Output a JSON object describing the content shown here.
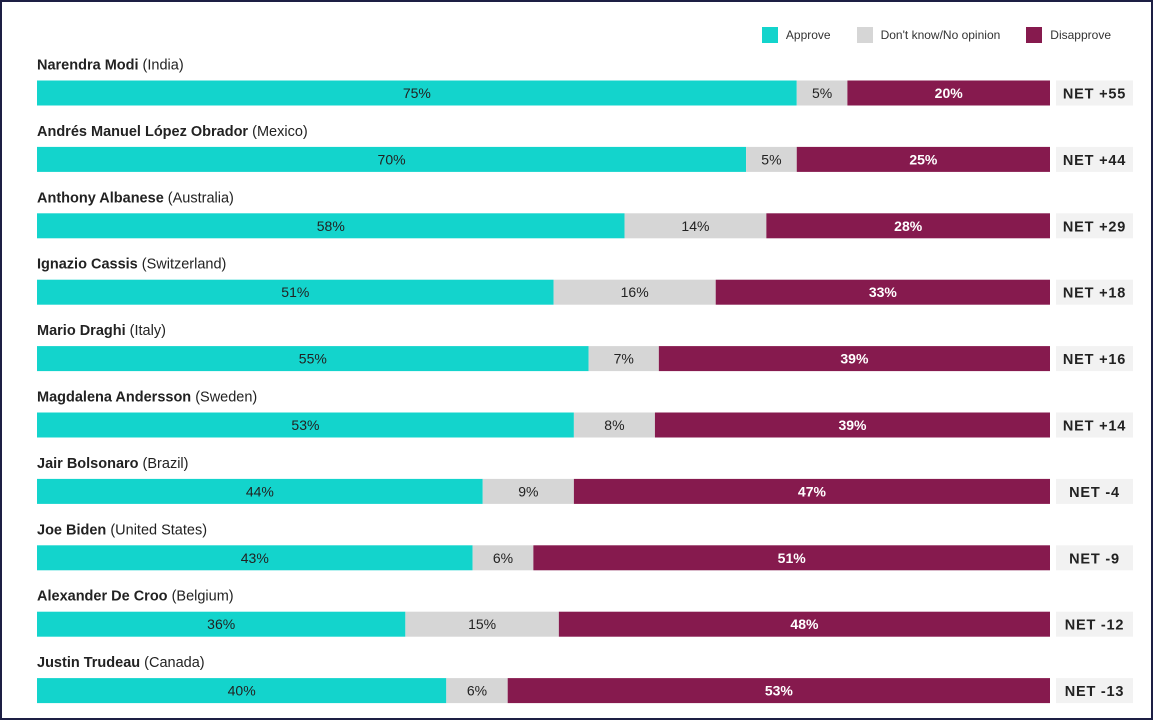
{
  "chart_data": {
    "type": "bar",
    "stacked": true,
    "orientation": "horizontal",
    "legend_position": "top-right",
    "colors": {
      "approve": "#13d4cc",
      "neutral": "#d6d6d6",
      "disapprove": "#861a4e",
      "net_bg": "#f2f2f2"
    },
    "legend": [
      "Approve",
      "Don't know/No opinion",
      "Disapprove"
    ],
    "rows": [
      {
        "name": "Narendra Modi",
        "country": "(India)",
        "approve": 75,
        "neutral": 5,
        "disapprove": 20,
        "approve_label": "75%",
        "neutral_label": "5%",
        "disapprove_label": "20%",
        "net": "NET +55"
      },
      {
        "name": "Andrés Manuel López Obrador",
        "country": "(Mexico)",
        "approve": 70,
        "neutral": 5,
        "disapprove": 25,
        "approve_label": "70%",
        "neutral_label": "5%",
        "disapprove_label": "25%",
        "net": "NET +44"
      },
      {
        "name": "Anthony Albanese",
        "country": "(Australia)",
        "approve": 58,
        "neutral": 14,
        "disapprove": 28,
        "approve_label": "58%",
        "neutral_label": "14%",
        "disapprove_label": "28%",
        "net": "NET +29"
      },
      {
        "name": "Ignazio Cassis",
        "country": "(Switzerland)",
        "approve": 51,
        "neutral": 16,
        "disapprove": 33,
        "approve_label": "51%",
        "neutral_label": "16%",
        "disapprove_label": "33%",
        "net": "NET +18"
      },
      {
        "name": "Mario Draghi",
        "country": "(Italy)",
        "approve": 55,
        "neutral": 7,
        "disapprove": 39,
        "approve_label": "55%",
        "neutral_label": "7%",
        "disapprove_label": "39%",
        "net": "NET +16"
      },
      {
        "name": "Magdalena Andersson",
        "country": "(Sweden)",
        "approve": 53,
        "neutral": 8,
        "disapprove": 39,
        "approve_label": "53%",
        "neutral_label": "8%",
        "disapprove_label": "39%",
        "net": "NET +14"
      },
      {
        "name": "Jair Bolsonaro",
        "country": "(Brazil)",
        "approve": 44,
        "neutral": 9,
        "disapprove": 47,
        "approve_label": "44%",
        "neutral_label": "9%",
        "disapprove_label": "47%",
        "net": "NET -4"
      },
      {
        "name": "Joe Biden",
        "country": "(United States)",
        "approve": 43,
        "neutral": 6,
        "disapprove": 51,
        "approve_label": "43%",
        "neutral_label": "6%",
        "disapprove_label": "51%",
        "net": "NET -9"
      },
      {
        "name": "Alexander De Croo",
        "country": "(Belgium)",
        "approve": 36,
        "neutral": 15,
        "disapprove": 48,
        "approve_label": "36%",
        "neutral_label": "15%",
        "disapprove_label": "48%",
        "net": "NET -12"
      },
      {
        "name": "Justin Trudeau",
        "country": "(Canada)",
        "approve": 40,
        "neutral": 6,
        "disapprove": 53,
        "approve_label": "40%",
        "neutral_label": "6%",
        "disapprove_label": "53%",
        "net": "NET -13"
      }
    ]
  }
}
